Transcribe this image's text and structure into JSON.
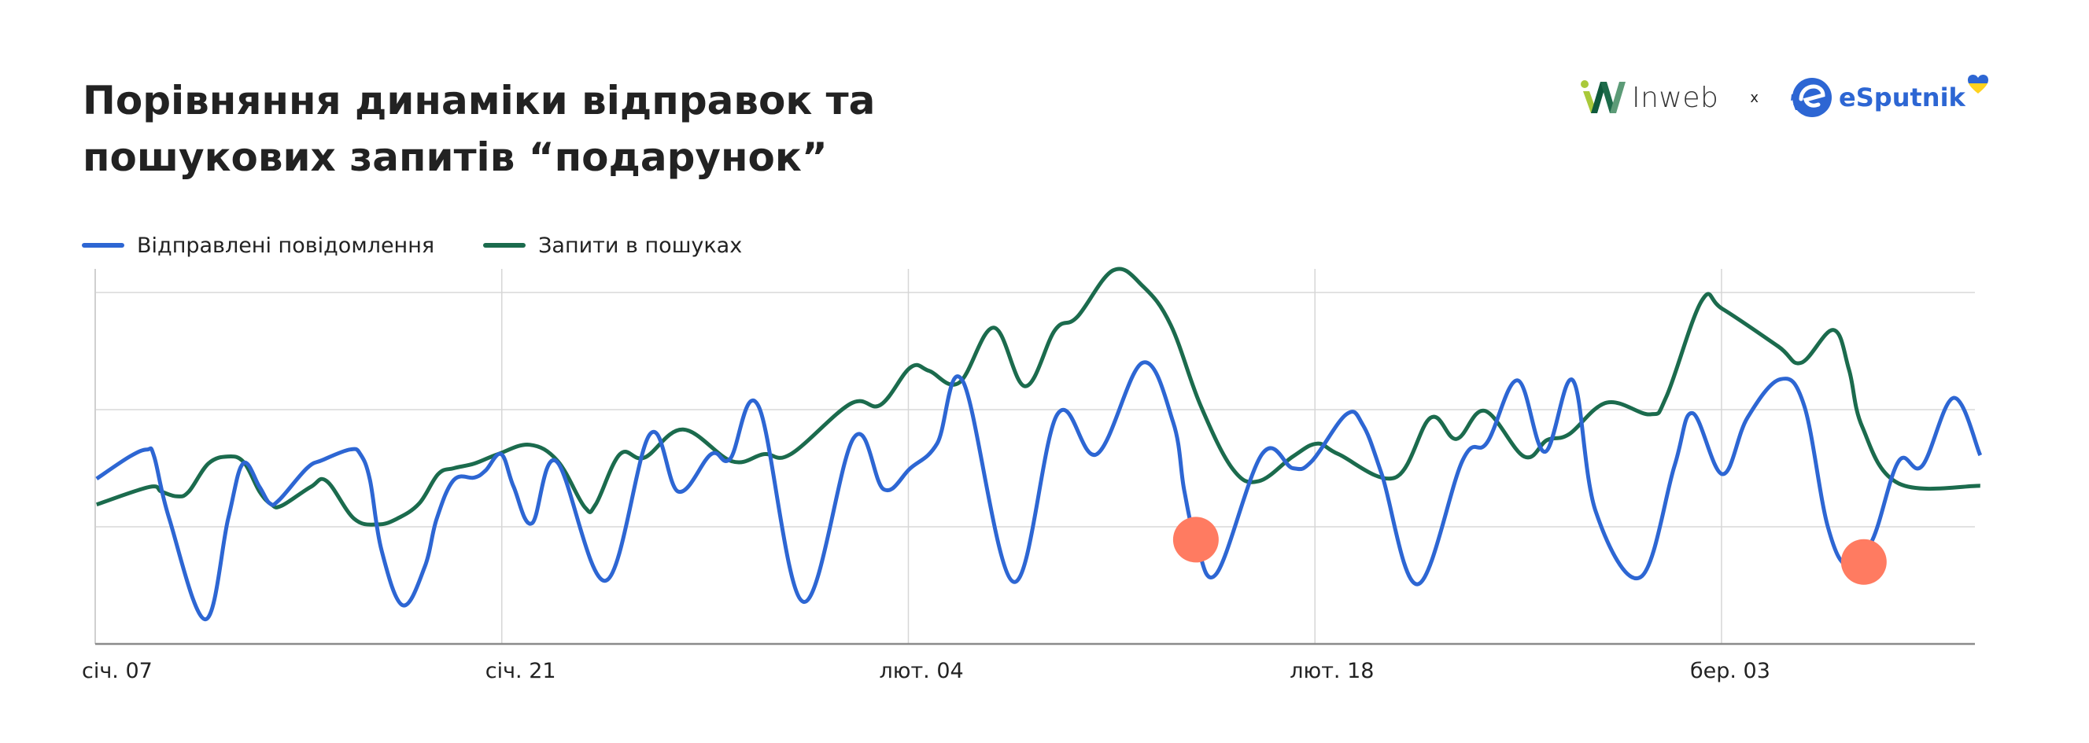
{
  "title": {
    "line1": "Порівняння динаміки відправок та",
    "line2": "пошукових запитів “подарунок”"
  },
  "logos": {
    "left": {
      "name": "Inweb",
      "text": "Inweb"
    },
    "separator": "x",
    "right": {
      "name": "eSputnik",
      "text": "eSputnik"
    }
  },
  "colors": {
    "sent": "#2D66D3",
    "search": "#1B6B4D",
    "highlight": "#FF7B61",
    "grid": "#E2E2E2",
    "axis": "#8A8A8A",
    "title": "#222222"
  },
  "legend": [
    {
      "label": "Відправлені повідомлення",
      "color": "#2D66D3"
    },
    {
      "label": "Запити в пошуках",
      "color": "#1B6B4D"
    }
  ],
  "chart_data": {
    "type": "line",
    "title": "Порівняння динаміки відправок та пошукових запитів “подарунок”",
    "xlabel": "",
    "ylabel": "",
    "x_unit": "days since січ. 07",
    "x_ticks": [
      {
        "day": 0,
        "label": "січ. 07"
      },
      {
        "day": 14,
        "label": "січ. 21"
      },
      {
        "day": 28,
        "label": "лют. 04"
      },
      {
        "day": 42,
        "label": "лют. 18"
      },
      {
        "day": 56,
        "label": "бер. 03"
      }
    ],
    "xlim": [
      0,
      64.9
    ],
    "ylim": [
      0,
      3.2
    ],
    "y_gridlines": [
      1,
      2,
      3
    ],
    "y_tick_labels_visible": false,
    "grid": true,
    "legend_position": "top-left",
    "series": [
      {
        "name": "Відправлені повідомлення",
        "color": "#2D66D3",
        "points": [
          [
            0.05,
            1.41
          ],
          [
            1.19,
            1.6
          ],
          [
            1.79,
            1.66
          ],
          [
            2.03,
            1.6
          ],
          [
            2.55,
            1.07
          ],
          [
            3.79,
            0.21
          ],
          [
            4.58,
            1.07
          ],
          [
            5.09,
            1.54
          ],
          [
            5.66,
            1.34
          ],
          [
            6.01,
            1.2
          ],
          [
            6.34,
            1.23
          ],
          [
            7.29,
            1.5
          ],
          [
            7.83,
            1.57
          ],
          [
            8.78,
            1.66
          ],
          [
            9.13,
            1.62
          ],
          [
            9.46,
            1.4
          ],
          [
            9.86,
            0.8
          ],
          [
            10.59,
            0.33
          ],
          [
            11.35,
            0.66
          ],
          [
            11.76,
            1.07
          ],
          [
            12.35,
            1.4
          ],
          [
            13.06,
            1.42
          ],
          [
            13.44,
            1.48
          ],
          [
            13.98,
            1.62
          ],
          [
            14.41,
            1.34
          ],
          [
            15.04,
            1.03
          ],
          [
            15.88,
            1.56
          ],
          [
            17.58,
            0.54
          ],
          [
            19.1,
            1.79
          ],
          [
            20.08,
            1.3
          ],
          [
            21.21,
            1.62
          ],
          [
            21.86,
            1.58
          ],
          [
            22.84,
            2.03
          ],
          [
            24.38,
            0.36
          ],
          [
            26.12,
            1.76
          ],
          [
            27.15,
            1.32
          ],
          [
            28.07,
            1.5
          ],
          [
            28.99,
            1.71
          ],
          [
            29.88,
            2.24
          ],
          [
            31.62,
            0.53
          ],
          [
            33.13,
            1.96
          ],
          [
            34.49,
            1.62
          ],
          [
            36.06,
            2.4
          ],
          [
            37.12,
            1.89
          ],
          [
            37.5,
            1.31
          ],
          [
            37.9,
            0.89
          ],
          [
            38.61,
            0.6
          ],
          [
            40.18,
            1.62
          ],
          [
            41.24,
            1.5
          ],
          [
            41.89,
            1.56
          ],
          [
            43.08,
            1.96
          ],
          [
            43.65,
            1.87
          ],
          [
            44.3,
            1.45
          ],
          [
            45.54,
            0.51
          ],
          [
            47.09,
            1.57
          ],
          [
            47.93,
            1.72
          ],
          [
            48.98,
            2.25
          ],
          [
            49.91,
            1.64
          ],
          [
            50.88,
            2.25
          ],
          [
            51.67,
            1.13
          ],
          [
            53.21,
            0.57
          ],
          [
            54.38,
            1.52
          ],
          [
            55.0,
            1.97
          ],
          [
            56.03,
            1.45
          ],
          [
            56.89,
            1.93
          ],
          [
            58.03,
            2.26
          ],
          [
            58.85,
            2.03
          ],
          [
            59.66,
            1.0
          ],
          [
            60.39,
            0.66
          ],
          [
            61.2,
            0.89
          ],
          [
            62.1,
            1.56
          ],
          [
            62.91,
            1.52
          ],
          [
            63.99,
            2.1
          ],
          [
            64.91,
            1.61
          ]
        ]
      },
      {
        "name": "Запити в пошуках",
        "color": "#1B6B4D",
        "points": [
          [
            0.05,
            1.19
          ],
          [
            1.87,
            1.34
          ],
          [
            2.28,
            1.3
          ],
          [
            2.82,
            1.26
          ],
          [
            3.22,
            1.3
          ],
          [
            3.9,
            1.54
          ],
          [
            4.58,
            1.6
          ],
          [
            5.12,
            1.55
          ],
          [
            5.66,
            1.3
          ],
          [
            6.07,
            1.19
          ],
          [
            6.42,
            1.18
          ],
          [
            7.42,
            1.34
          ],
          [
            7.97,
            1.39
          ],
          [
            8.91,
            1.07
          ],
          [
            9.73,
            1.02
          ],
          [
            10.4,
            1.07
          ],
          [
            11.16,
            1.2
          ],
          [
            11.81,
            1.45
          ],
          [
            12.35,
            1.5
          ],
          [
            13.06,
            1.54
          ],
          [
            13.87,
            1.62
          ],
          [
            14.96,
            1.7
          ],
          [
            15.93,
            1.56
          ],
          [
            16.85,
            1.17
          ],
          [
            17.23,
            1.19
          ],
          [
            18.07,
            1.62
          ],
          [
            18.91,
            1.59
          ],
          [
            20.24,
            1.83
          ],
          [
            21.92,
            1.56
          ],
          [
            23.03,
            1.62
          ],
          [
            23.95,
            1.62
          ],
          [
            26.01,
            2.05
          ],
          [
            27.04,
            2.04
          ],
          [
            28.07,
            2.36
          ],
          [
            28.72,
            2.33
          ],
          [
            29.75,
            2.23
          ],
          [
            30.94,
            2.7
          ],
          [
            32.02,
            2.2
          ],
          [
            33.05,
            2.68
          ],
          [
            33.81,
            2.79
          ],
          [
            35.06,
            3.19
          ],
          [
            36.09,
            3.05
          ],
          [
            37.04,
            2.72
          ],
          [
            38.07,
            2.03
          ],
          [
            39.18,
            1.49
          ],
          [
            40.07,
            1.39
          ],
          [
            41.24,
            1.6
          ],
          [
            42.08,
            1.71
          ],
          [
            42.81,
            1.62
          ],
          [
            44.76,
            1.42
          ],
          [
            45.98,
            1.93
          ],
          [
            46.87,
            1.75
          ],
          [
            47.85,
            1.99
          ],
          [
            49.2,
            1.6
          ],
          [
            49.99,
            1.74
          ],
          [
            50.75,
            1.79
          ],
          [
            52.05,
            2.06
          ],
          [
            53.54,
            1.96
          ],
          [
            54.1,
            2.11
          ],
          [
            55.32,
            2.93
          ],
          [
            56.03,
            2.86
          ],
          [
            57.95,
            2.54
          ],
          [
            58.74,
            2.4
          ],
          [
            59.85,
            2.68
          ],
          [
            60.39,
            2.34
          ],
          [
            60.85,
            1.85
          ],
          [
            62.1,
            1.37
          ],
          [
            64.91,
            1.35
          ]
        ]
      }
    ],
    "annotations": [
      {
        "type": "marker",
        "shape": "circle",
        "color": "#FF7B61",
        "day": 37.9,
        "value": 0.89,
        "note": "highlighted dip in sent messages"
      },
      {
        "type": "marker",
        "shape": "circle",
        "color": "#FF7B61",
        "day": 60.9,
        "value": 0.7,
        "note": "highlighted dip in sent messages"
      }
    ]
  }
}
